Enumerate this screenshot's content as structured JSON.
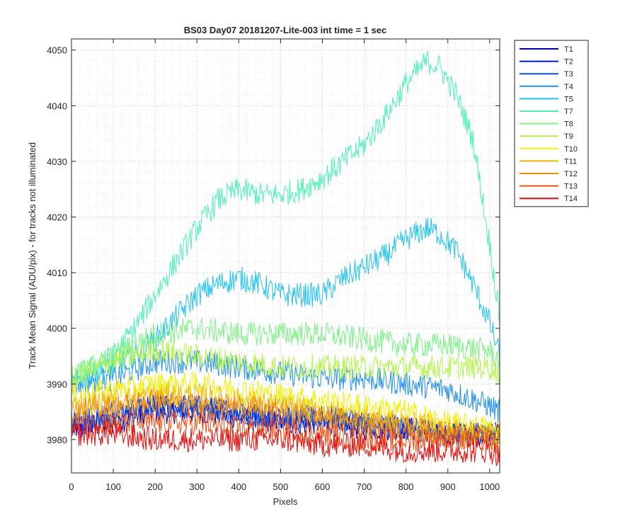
{
  "chart_data": {
    "type": "line",
    "title": "BS03 Day07 20181207-Lite-003 int time = 1 sec",
    "xlabel": "Pixels",
    "ylabel": "Track Mean Signal (ADU/pix) - for tracks not illuminated",
    "xlim": [
      0,
      1024
    ],
    "ylim": [
      3974,
      4052
    ],
    "xticks": [
      0,
      100,
      200,
      300,
      400,
      500,
      600,
      700,
      800,
      900,
      1000
    ],
    "yticks": [
      3980,
      3990,
      4000,
      4010,
      4020,
      4030,
      4040,
      4050
    ],
    "grid": "major and minor, dotted",
    "legend_position": "outside-right",
    "series": [
      {
        "name": "T1",
        "color": "#0000aa",
        "x": [
          0,
          100,
          200,
          300,
          400,
          500,
          600,
          700,
          800,
          900,
          1024
        ],
        "y": [
          3982,
          3983,
          3985,
          3985,
          3984,
          3983,
          3983,
          3982,
          3982,
          3981,
          3981
        ]
      },
      {
        "name": "T2",
        "color": "#0018d8",
        "x": [
          0,
          100,
          200,
          300,
          400,
          500,
          600,
          700,
          800,
          900,
          1024
        ],
        "y": [
          3982,
          3984,
          3986,
          3986,
          3985,
          3984,
          3984,
          3983,
          3982,
          3981,
          3981
        ]
      },
      {
        "name": "T3",
        "color": "#0a4fe8",
        "x": [
          0,
          100,
          200,
          300,
          400,
          500,
          600,
          700,
          800,
          900,
          1024
        ],
        "y": [
          3983,
          3985,
          3986,
          3986,
          3985,
          3984,
          3984,
          3983,
          3982,
          3981,
          3981
        ]
      },
      {
        "name": "T4",
        "color": "#1f8ff0",
        "x": [
          0,
          100,
          200,
          300,
          400,
          500,
          600,
          700,
          800,
          900,
          1000,
          1024
        ],
        "y": [
          3990,
          3991,
          3994,
          3994,
          3993,
          3992,
          3991,
          3991,
          3990,
          3989,
          3986,
          3985
        ]
      },
      {
        "name": "T5",
        "color": "#22c2f0",
        "x": [
          0,
          100,
          150,
          200,
          250,
          300,
          350,
          400,
          450,
          500,
          550,
          600,
          650,
          700,
          750,
          800,
          850,
          880,
          920,
          960,
          1000,
          1024
        ],
        "y": [
          3990,
          3993,
          3995,
          3998,
          4002,
          4006,
          4008,
          4009,
          4008,
          4006,
          4006,
          4006,
          4009,
          4011,
          4013,
          4016,
          4018,
          4017,
          4014,
          4008,
          4001,
          3995
        ]
      },
      {
        "name": "T7",
        "color": "#4ff0b8",
        "x": [
          0,
          100,
          150,
          200,
          250,
          300,
          350,
          400,
          450,
          500,
          550,
          600,
          650,
          700,
          750,
          800,
          850,
          880,
          920,
          960,
          1000,
          1024
        ],
        "y": [
          3991,
          3995,
          4000,
          4006,
          4012,
          4018,
          4023,
          4025,
          4024,
          4024,
          4025,
          4027,
          4030,
          4033,
          4038,
          4044,
          4048,
          4047,
          4042,
          4034,
          4015,
          4002
        ]
      },
      {
        "name": "T8",
        "color": "#7df087",
        "x": [
          0,
          100,
          200,
          300,
          400,
          500,
          600,
          700,
          800,
          900,
          1000,
          1024
        ],
        "y": [
          3991,
          3995,
          3999,
          4000,
          3999,
          3999,
          3999,
          3998,
          3997,
          3997,
          3996,
          3994
        ]
      },
      {
        "name": "T9",
        "color": "#b0f545",
        "x": [
          0,
          100,
          200,
          300,
          400,
          500,
          600,
          700,
          800,
          900,
          1000,
          1024
        ],
        "y": [
          3991,
          3994,
          3996,
          3995,
          3994,
          3993,
          3993,
          3993,
          3993,
          3993,
          3993,
          3992
        ]
      },
      {
        "name": "T10",
        "color": "#f0f000",
        "x": [
          0,
          100,
          200,
          300,
          400,
          500,
          600,
          700,
          800,
          900,
          1000,
          1024
        ],
        "y": [
          3988,
          3989,
          3990,
          3990,
          3989,
          3988,
          3987,
          3986,
          3985,
          3983,
          3982,
          3981
        ]
      },
      {
        "name": "T11",
        "color": "#f5b800",
        "x": [
          0,
          100,
          200,
          300,
          400,
          500,
          600,
          700,
          800,
          900,
          1000,
          1024
        ],
        "y": [
          3986,
          3987,
          3988,
          3988,
          3987,
          3986,
          3985,
          3984,
          3983,
          3982,
          3981,
          3981
        ]
      },
      {
        "name": "T12",
        "color": "#f58c0e",
        "x": [
          0,
          100,
          200,
          300,
          400,
          500,
          600,
          700,
          800,
          900,
          1000,
          1024
        ],
        "y": [
          3985,
          3986,
          3987,
          3986,
          3986,
          3985,
          3984,
          3983,
          3982,
          3981,
          3980,
          3980
        ]
      },
      {
        "name": "T13",
        "color": "#f24f10",
        "x": [
          0,
          100,
          200,
          300,
          400,
          500,
          600,
          700,
          800,
          900,
          1000,
          1024
        ],
        "y": [
          3983,
          3983,
          3983,
          3983,
          3982,
          3982,
          3981,
          3980,
          3980,
          3980,
          3980,
          3979
        ]
      },
      {
        "name": "T14",
        "color": "#e60a0a",
        "x": [
          0,
          100,
          200,
          300,
          400,
          500,
          600,
          700,
          800,
          900,
          1000,
          1024
        ],
        "y": [
          3981,
          3981,
          3980,
          3980,
          3980,
          3980,
          3979,
          3979,
          3978,
          3978,
          3978,
          3977
        ]
      }
    ]
  }
}
